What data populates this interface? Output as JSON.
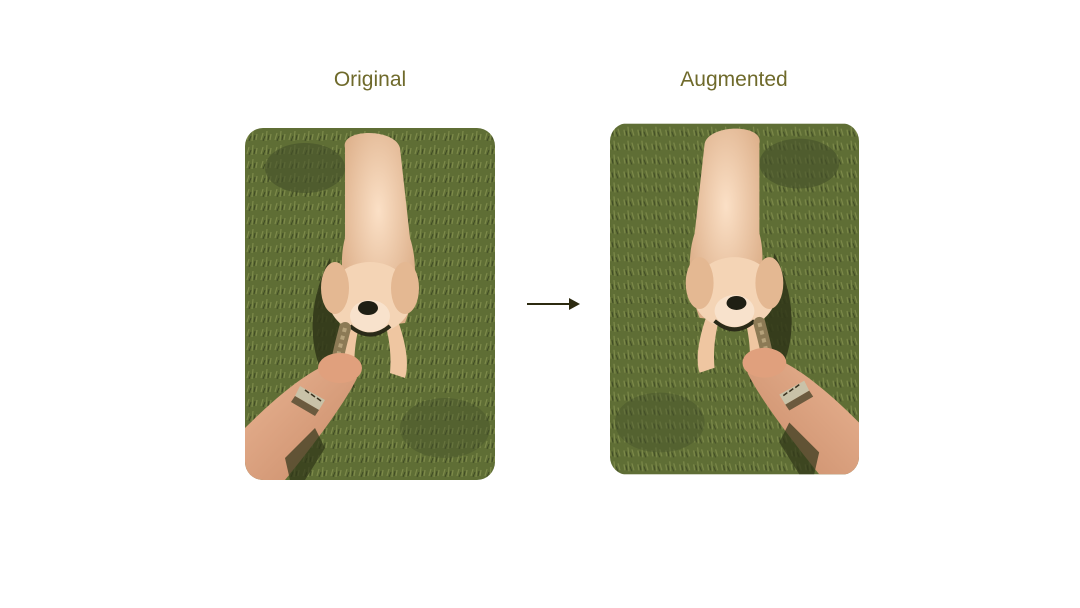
{
  "labels": {
    "original": "Original",
    "augmented": "Augmented"
  },
  "colors": {
    "label_text": "#6f6a2b",
    "grass": "#5f6e35",
    "grass_dark": "#44502a",
    "dog_fur": "#f1c9a6",
    "dog_shadow": "#3a3f1f",
    "skin": "#e3a782",
    "arrow": "#2c2a10"
  },
  "diagram": {
    "transform": "horizontal-flip",
    "panels": [
      {
        "name": "original",
        "content": "photo of golden retriever tugging rope held by a hand on grass"
      },
      {
        "name": "augmented",
        "content": "same photo mirrored horizontally"
      }
    ]
  }
}
